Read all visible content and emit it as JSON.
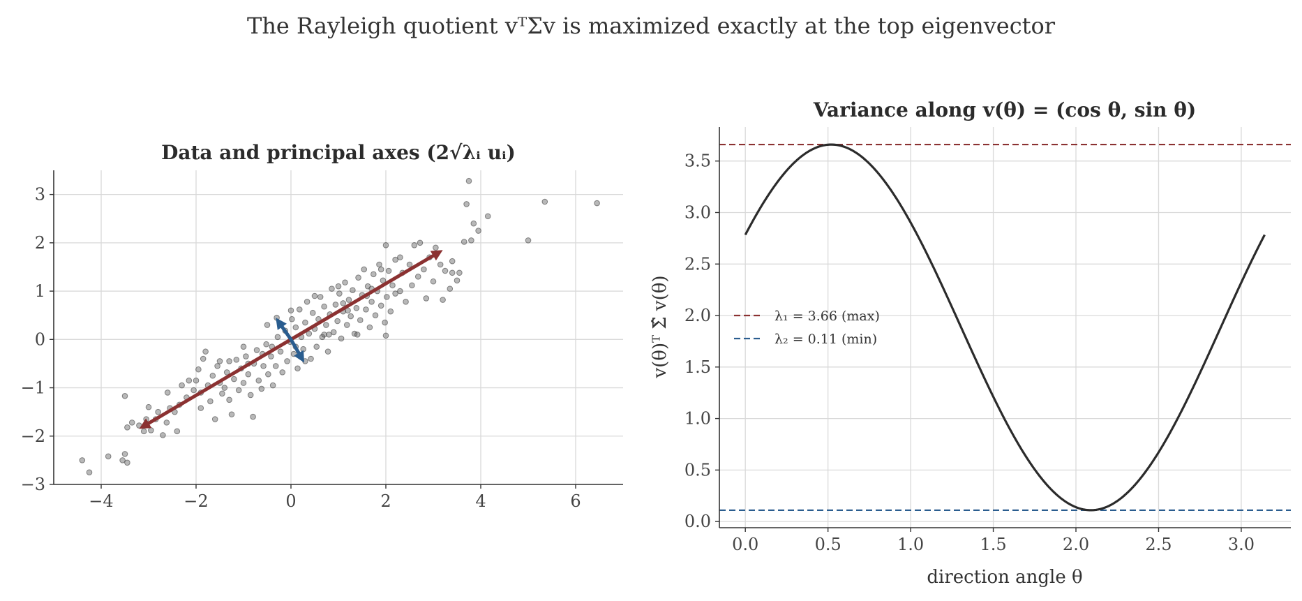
{
  "figure": {
    "title": "The Rayleigh quotient vᵀΣv is maximized exactly at the top eigenvector"
  },
  "colors": {
    "major_axis": "#8b3131",
    "minor_axis": "#2a5d8f",
    "scatter": "#555555",
    "curve": "#2b2b2b"
  },
  "chart_data": [
    {
      "type": "scatter",
      "title": "Data and principal axes (2√λᵢ uᵢ)",
      "xlabel": "",
      "ylabel": "",
      "xlim": [
        -5,
        7
      ],
      "ylim": [
        -3,
        3.5
      ],
      "xticks": [
        -4,
        -2,
        0,
        2,
        4,
        6
      ],
      "yticks": [
        -3,
        -2,
        -1,
        0,
        1,
        2,
        3
      ],
      "xtick_labels": [
        "−4",
        "−2",
        "0",
        "2",
        "4",
        "6"
      ],
      "ytick_labels": [
        "−3",
        "−2",
        "−1",
        "0",
        "1",
        "2",
        "3"
      ],
      "grid": true,
      "points": [
        [
          -4.4,
          -2.5
        ],
        [
          -4.25,
          -2.75
        ],
        [
          -3.85,
          -2.42
        ],
        [
          -3.55,
          -2.5
        ],
        [
          -3.45,
          -2.55
        ],
        [
          -3.5,
          -2.37
        ],
        [
          -3.5,
          -1.17
        ],
        [
          -3.45,
          -1.82
        ],
        [
          -3.35,
          -1.72
        ],
        [
          -3.2,
          -1.78
        ],
        [
          -3.1,
          -1.9
        ],
        [
          -3.05,
          -1.65
        ],
        [
          -3.0,
          -1.4
        ],
        [
          -2.95,
          -1.88
        ],
        [
          -2.85,
          -1.65
        ],
        [
          -2.8,
          -1.5
        ],
        [
          -2.7,
          -1.98
        ],
        [
          -2.62,
          -1.72
        ],
        [
          -2.55,
          -1.42
        ],
        [
          -2.45,
          -1.5
        ],
        [
          -2.4,
          -1.9
        ],
        [
          -2.35,
          -1.35
        ],
        [
          -2.3,
          -0.95
        ],
        [
          -2.2,
          -1.2
        ],
        [
          -2.15,
          -0.85
        ],
        [
          -2.05,
          -1.05
        ],
        [
          -1.95,
          -0.62
        ],
        [
          -1.9,
          -1.42
        ],
        [
          -1.85,
          -0.4
        ],
        [
          -1.8,
          -0.25
        ],
        [
          -1.75,
          -0.95
        ],
        [
          -1.7,
          -1.28
        ],
        [
          -1.65,
          -0.75
        ],
        [
          -1.6,
          -1.65
        ],
        [
          -1.55,
          -0.55
        ],
        [
          -1.5,
          -0.9
        ],
        [
          -1.45,
          -1.12
        ],
        [
          -1.4,
          -1.0
        ],
        [
          -1.35,
          -0.68
        ],
        [
          -1.3,
          -1.25
        ],
        [
          -1.25,
          -1.55
        ],
        [
          -1.2,
          -0.82
        ],
        [
          -1.15,
          -0.42
        ],
        [
          -1.1,
          -1.05
        ],
        [
          -1.05,
          -0.6
        ],
        [
          -1.0,
          -0.9
        ],
        [
          -0.95,
          -0.35
        ],
        [
          -0.9,
          -0.72
        ],
        [
          -0.85,
          -1.15
        ],
        [
          -0.8,
          -1.6
        ],
        [
          -0.78,
          -0.5
        ],
        [
          -0.72,
          -0.22
        ],
        [
          -0.68,
          -0.85
        ],
        [
          -0.62,
          -1.02
        ],
        [
          -0.58,
          -0.55
        ],
        [
          -0.52,
          -0.1
        ],
        [
          -0.48,
          -0.72
        ],
        [
          -0.42,
          -0.35
        ],
        [
          -0.38,
          -0.95
        ],
        [
          -0.32,
          -0.55
        ],
        [
          -0.28,
          0.05
        ],
        [
          -0.22,
          -0.25
        ],
        [
          -0.18,
          -0.68
        ],
        [
          -0.12,
          0.18
        ],
        [
          -0.08,
          -0.45
        ],
        [
          -0.02,
          -0.05
        ],
        [
          0.02,
          0.42
        ],
        [
          0.06,
          -0.3
        ],
        [
          0.1,
          0.25
        ],
        [
          0.14,
          -0.6
        ],
        [
          0.18,
          0.62
        ],
        [
          0.22,
          0.05
        ],
        [
          0.26,
          -0.2
        ],
        [
          0.3,
          0.35
        ],
        [
          0.34,
          0.78
        ],
        [
          0.38,
          0.12
        ],
        [
          0.42,
          -0.4
        ],
        [
          0.46,
          0.55
        ],
        [
          0.5,
          0.22
        ],
        [
          0.54,
          -0.15
        ],
        [
          0.58,
          0.42
        ],
        [
          0.62,
          0.88
        ],
        [
          0.66,
          0.05
        ],
        [
          0.7,
          0.68
        ],
        [
          0.74,
          0.3
        ],
        [
          0.78,
          -0.25
        ],
        [
          0.82,
          0.52
        ],
        [
          0.86,
          1.05
        ],
        [
          0.9,
          0.15
        ],
        [
          0.94,
          0.72
        ],
        [
          0.98,
          0.38
        ],
        [
          1.02,
          0.95
        ],
        [
          1.06,
          0.02
        ],
        [
          1.1,
          0.58
        ],
        [
          1.14,
          1.18
        ],
        [
          1.18,
          0.3
        ],
        [
          1.22,
          0.82
        ],
        [
          1.26,
          0.48
        ],
        [
          1.3,
          1.02
        ],
        [
          1.34,
          0.12
        ],
        [
          1.38,
          0.65
        ],
        [
          1.42,
          1.28
        ],
        [
          1.46,
          0.4
        ],
        [
          1.5,
          0.92
        ],
        [
          1.54,
          1.45
        ],
        [
          1.58,
          0.62
        ],
        [
          1.62,
          1.1
        ],
        [
          1.66,
          0.25
        ],
        [
          1.7,
          0.78
        ],
        [
          1.74,
          1.35
        ],
        [
          1.78,
          0.5
        ],
        [
          1.82,
          1.0
        ],
        [
          1.86,
          1.55
        ],
        [
          1.9,
          0.7
        ],
        [
          1.94,
          1.22
        ],
        [
          1.98,
          0.35
        ],
        [
          2.02,
          0.88
        ],
        [
          2.06,
          1.42
        ],
        [
          2.1,
          0.58
        ],
        [
          2.14,
          1.12
        ],
        [
          2.0,
          0.08
        ],
        [
          2.0,
          1.95
        ],
        [
          2.2,
          1.65
        ],
        [
          2.3,
          1.0
        ],
        [
          2.35,
          1.38
        ],
        [
          2.42,
          0.78
        ],
        [
          2.5,
          1.55
        ],
        [
          2.55,
          1.12
        ],
        [
          2.6,
          1.95
        ],
        [
          2.68,
          1.3
        ],
        [
          2.72,
          2.0
        ],
        [
          2.8,
          1.45
        ],
        [
          2.85,
          0.85
        ],
        [
          2.92,
          1.7
        ],
        [
          3.0,
          1.2
        ],
        [
          3.05,
          1.9
        ],
        [
          3.15,
          1.55
        ],
        [
          3.2,
          0.82
        ],
        [
          3.25,
          1.42
        ],
        [
          3.35,
          1.05
        ],
        [
          3.4,
          1.38
        ],
        [
          3.4,
          1.62
        ],
        [
          3.5,
          1.22
        ],
        [
          3.55,
          1.38
        ],
        [
          3.65,
          2.02
        ],
        [
          3.7,
          2.8
        ],
        [
          3.75,
          3.28
        ],
        [
          3.8,
          2.05
        ],
        [
          3.85,
          2.4
        ],
        [
          3.95,
          2.25
        ],
        [
          4.15,
          2.55
        ],
        [
          5.0,
          2.05
        ],
        [
          5.35,
          2.85
        ],
        [
          6.45,
          2.82
        ],
        [
          -1.3,
          -0.45
        ],
        [
          -0.6,
          -0.3
        ],
        [
          0.3,
          -0.45
        ],
        [
          0.8,
          0.1
        ],
        [
          1.2,
          0.6
        ],
        [
          1.6,
          0.9
        ],
        [
          -2.0,
          -0.85
        ],
        [
          -2.6,
          -1.1
        ],
        [
          -1.0,
          -0.15
        ],
        [
          0.0,
          0.6
        ],
        [
          0.5,
          0.9
        ],
        [
          1.0,
          1.1
        ],
        [
          1.4,
          0.1
        ],
        [
          1.9,
          1.45
        ],
        [
          2.3,
          1.7
        ],
        [
          -0.5,
          0.3
        ],
        [
          -0.3,
          0.45
        ],
        [
          0.1,
          -0.15
        ],
        [
          0.7,
          0.1
        ],
        [
          1.1,
          0.75
        ],
        [
          1.7,
          1.05
        ],
        [
          2.2,
          0.95
        ],
        [
          -1.9,
          -1.1
        ],
        [
          -1.5,
          -0.45
        ],
        [
          -0.9,
          -0.5
        ],
        [
          -0.4,
          -0.15
        ]
      ],
      "arrows": [
        {
          "name": "major-axis",
          "from": [
            0,
            0
          ],
          "to": [
            3.2,
            1.85
          ],
          "color": "#8b3131"
        },
        {
          "name": "major-axis",
          "from": [
            0,
            0
          ],
          "to": [
            -3.2,
            -1.85
          ],
          "color": "#8b3131"
        },
        {
          "name": "minor-axis",
          "from": [
            0,
            0
          ],
          "to": [
            -0.32,
            0.45
          ],
          "color": "#2a5d8f"
        },
        {
          "name": "minor-axis",
          "from": [
            0,
            0
          ],
          "to": [
            0.28,
            -0.48
          ],
          "color": "#2a5d8f"
        }
      ]
    },
    {
      "type": "line",
      "title": "Variance along v(θ) = (cos θ, sin θ)",
      "xlabel": "direction angle θ",
      "ylabel": "v(θ)ᵀ Σ̂ v(θ)",
      "xlim": [
        -0.157,
        3.3
      ],
      "ylim": [
        -0.06,
        3.83
      ],
      "xticks": [
        0.0,
        0.5,
        1.0,
        1.5,
        2.0,
        2.5,
        3.0
      ],
      "yticks": [
        0.0,
        0.5,
        1.0,
        1.5,
        2.0,
        2.5,
        3.0,
        3.5
      ],
      "xtick_labels": [
        "0.0",
        "0.5",
        "1.0",
        "1.5",
        "2.0",
        "2.5",
        "3.0"
      ],
      "ytick_labels": [
        "0.0",
        "0.5",
        "1.0",
        "1.5",
        "2.0",
        "2.5",
        "3.0",
        "3.5"
      ],
      "grid": true,
      "legend": "center-left",
      "curve": {
        "x_range": [
          0,
          3.14159
        ],
        "lambda_max": 3.66,
        "lambda_min": 0.11,
        "theta_at_max": 0.52
      },
      "series": [
        {
          "name": "λ₁ = 3.66 (max)",
          "value": 3.66,
          "color": "#8b3131",
          "style": "dashed"
        },
        {
          "name": "λ₂ = 0.11 (min)",
          "value": 0.11,
          "color": "#2a5d8f",
          "style": "dashed"
        }
      ]
    }
  ]
}
